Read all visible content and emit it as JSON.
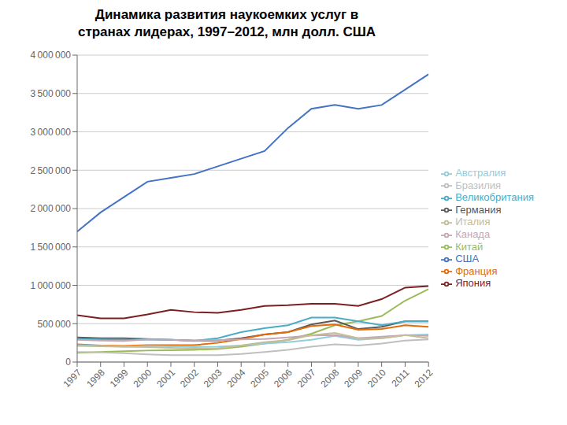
{
  "chart_data": {
    "type": "line",
    "title": "Динамика развития наукоемких услуг в\nстранах лидерах, 1997–2012, млн долл. США",
    "x": [
      1997,
      1998,
      1999,
      2000,
      2001,
      2002,
      2003,
      2004,
      2005,
      2006,
      2007,
      2008,
      2009,
      2010,
      2011,
      2012
    ],
    "series": [
      {
        "name": "США",
        "color": "#4472C4",
        "values": [
          1700000,
          1950000,
          2150000,
          2350000,
          2400000,
          2450000,
          2550000,
          2650000,
          2750000,
          3050000,
          3300000,
          3350000,
          3300000,
          3350000,
          3550000,
          3750000
        ]
      },
      {
        "name": "Япония",
        "color": "#7B2020",
        "values": [
          610000,
          570000,
          570000,
          620000,
          680000,
          650000,
          640000,
          680000,
          730000,
          740000,
          760000,
          760000,
          730000,
          820000,
          970000,
          990000
        ]
      },
      {
        "name": "Китай",
        "color": "#9BBB59",
        "values": [
          120000,
          130000,
          140000,
          150000,
          155000,
          160000,
          170000,
          200000,
          240000,
          290000,
          370000,
          480000,
          530000,
          600000,
          800000,
          950000
        ]
      },
      {
        "name": "Германия",
        "color": "#595959",
        "values": [
          320000,
          310000,
          310000,
          300000,
          290000,
          280000,
          280000,
          310000,
          360000,
          390000,
          490000,
          540000,
          430000,
          460000,
          530000,
          530000
        ]
      },
      {
        "name": "Великобритания",
        "color": "#4BACC6",
        "values": [
          300000,
          295000,
          290000,
          295000,
          290000,
          275000,
          310000,
          390000,
          440000,
          480000,
          580000,
          580000,
          530000,
          480000,
          530000,
          530000
        ]
      },
      {
        "name": "Франция",
        "color": "#E36C09",
        "values": [
          230000,
          215000,
          210000,
          220000,
          220000,
          220000,
          250000,
          300000,
          360000,
          390000,
          470000,
          490000,
          420000,
          430000,
          480000,
          460000
        ]
      },
      {
        "name": "Австралия",
        "color": "#92CDDC",
        "values": [
          220000,
          210000,
          200000,
          210000,
          205000,
          195000,
          200000,
          215000,
          240000,
          260000,
          290000,
          340000,
          290000,
          310000,
          350000,
          360000
        ]
      },
      {
        "name": "Канада",
        "color": "#C4A7B5",
        "values": [
          290000,
          280000,
          275000,
          295000,
          290000,
          280000,
          285000,
          295000,
          300000,
          320000,
          345000,
          350000,
          310000,
          330000,
          350000,
          340000
        ]
      },
      {
        "name": "Италия",
        "color": "#C4BD97",
        "values": [
          210000,
          205000,
          200000,
          195000,
          185000,
          175000,
          180000,
          215000,
          260000,
          285000,
          350000,
          380000,
          310000,
          310000,
          350000,
          310000
        ]
      },
      {
        "name": "Бразилия",
        "color": "#BFBFBF",
        "values": [
          130000,
          125000,
          115000,
          100000,
          90000,
          90000,
          90000,
          105000,
          130000,
          160000,
          200000,
          230000,
          215000,
          240000,
          280000,
          295000
        ]
      }
    ],
    "xlim": [
      1997,
      2012
    ],
    "xticks": [
      1997,
      1998,
      1999,
      2000,
      2001,
      2002,
      2003,
      2004,
      2005,
      2006,
      2007,
      2008,
      2009,
      2010,
      2011,
      2012
    ],
    "ylim": [
      0,
      4000000
    ],
    "yticks": [
      0,
      {
        "value": 500000,
        "label": "500 000"
      },
      {
        "value": 1000000,
        "label": "1 000 000"
      },
      {
        "value": 1500000,
        "label": "1 500 000"
      },
      {
        "value": 2000000,
        "label": "2 000 000"
      },
      {
        "value": 2500000,
        "label": "2 500 000"
      },
      {
        "value": 3000000,
        "label": "3 000 000"
      },
      {
        "value": 3500000,
        "label": "3 500 000"
      },
      {
        "value": 4000000,
        "label": "4 000 000"
      }
    ],
    "grid": "y",
    "legend": "right"
  }
}
